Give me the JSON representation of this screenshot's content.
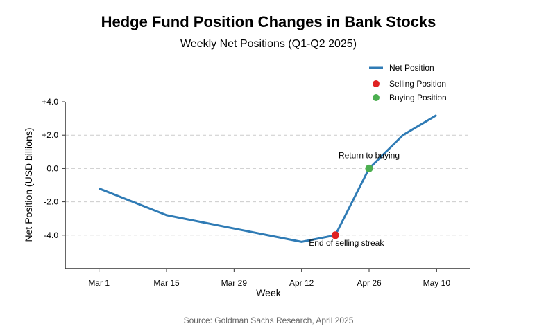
{
  "chart_data": {
    "type": "line",
    "title": "Hedge Fund Position Changes in Bank Stocks",
    "subtitle": "Weekly Net Positions (Q1-Q2 2025)",
    "xlabel": "Week",
    "ylabel": "Net Position (USD billions)",
    "x_ticks": [
      "Mar 1",
      "Mar 15",
      "Mar 29",
      "Apr 12",
      "Apr 26",
      "May 10"
    ],
    "x_tick_days": [
      0,
      14,
      28,
      42,
      56,
      70
    ],
    "xlim": [
      -7,
      77
    ],
    "y_ticks": [
      "+4.0",
      "+2.0",
      "0.0",
      "-2.0",
      "-4.0"
    ],
    "y_tick_values": [
      4,
      2,
      0,
      -2,
      -4
    ],
    "ylim": [
      -6,
      4
    ],
    "grid": "horizontal dashed",
    "series": [
      {
        "name": "Net Position",
        "color": "#2f7bb5",
        "x_days": [
          0,
          14,
          28,
          42,
          49,
          56,
          63,
          70
        ],
        "values": [
          -1.2,
          -2.8,
          -3.6,
          -4.4,
          -4.0,
          0.0,
          2.0,
          3.2
        ]
      }
    ],
    "markers": [
      {
        "name": "Selling Position",
        "color": "#e02222",
        "x_day": 49,
        "value": -4.0
      },
      {
        "name": "Buying Position",
        "color": "#4caf50",
        "x_day": 56,
        "value": 0.0
      }
    ],
    "annotations": [
      {
        "text": "End of selling streak",
        "x_day": 49,
        "value": -4.0
      },
      {
        "text": "Return to buying",
        "x_day": 56,
        "value": 0.0
      }
    ],
    "legend": {
      "position": "top-right",
      "entries": [
        "Net Position",
        "Selling Position",
        "Buying Position"
      ]
    },
    "source": "Source: Goldman Sachs Research, April 2025"
  }
}
